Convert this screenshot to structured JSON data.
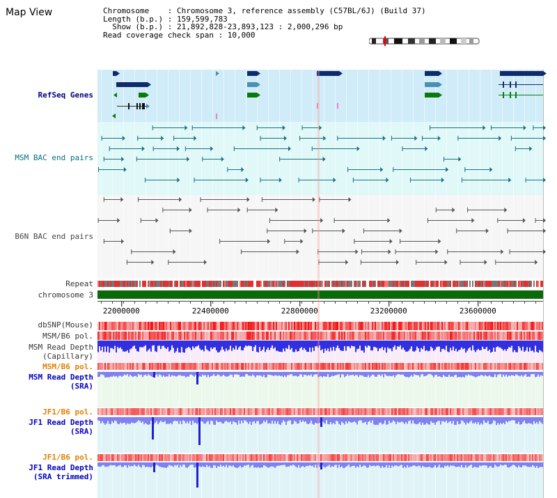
{
  "title": "Map View",
  "info": [
    "Chromosome    : Chromosome 3, reference assembly (C57BL/6J) (Build 37)",
    "Length (b.p.) : 159,599,783",
    "  Show (b.p.) : 21,892,828-23,893,123 : 2,000,296 bp",
    "Read coverage check span : 10,000"
  ],
  "tracks": {
    "refseq": "RefSeq Genes",
    "msm_bac": "MSM BAC end pairs",
    "b6n_bac": "B6N BAC end pairs",
    "repeat": "Repeat",
    "chromosome": "chromosome 3",
    "dbsnp": "dbSNP(Mouse)",
    "msm_pol_1": "MSM/B6 pol.",
    "msm_depth_cap_1": "MSM Read Depth",
    "msm_depth_cap_2": "(Capillary)",
    "msm_pol_2": "MSM/B6 pol.",
    "msm_depth_sra_1": "MSM Read Depth",
    "msm_depth_sra_2": "(SRA)",
    "jf1_pol_1": "JF1/B6 pol.",
    "jf1_depth_sra_1": "JF1 Read Depth",
    "jf1_depth_sra_2": "(SRA)",
    "jf1_pol_2": "JF1/B6 pol.",
    "jf1_depth_trim_1": "JF1 Read Depth",
    "jf1_depth_trim_2": "(SRA trimmed)"
  },
  "axis": {
    "ticks": [
      22000000,
      22400000,
      22800000,
      23200000,
      23600000
    ],
    "range": [
      21892828,
      23893123
    ]
  },
  "colors": {
    "gene_dark": "#102a6a",
    "gene_teal": "#4a90b0",
    "gene_green": "#0a7a0a",
    "chromosome": "#0a6a0a",
    "depth_blue": "#3030e0",
    "depth_light": "#8080f0",
    "snp": "#f03030"
  }
}
